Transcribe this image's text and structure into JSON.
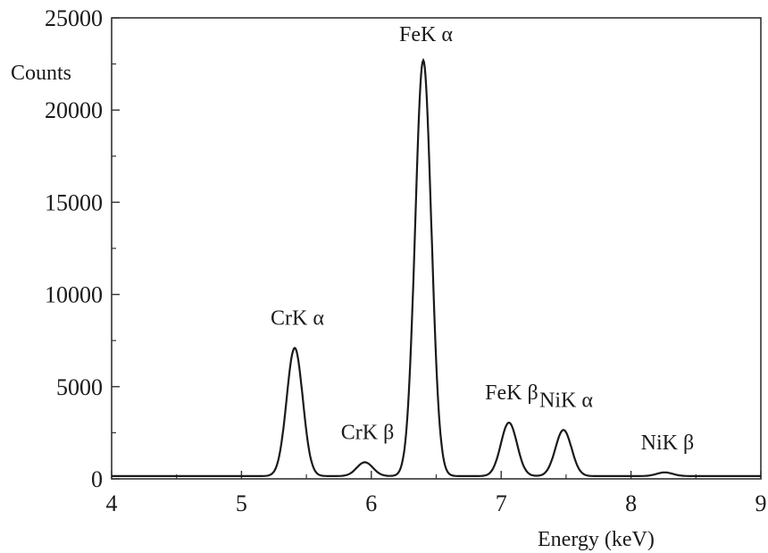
{
  "chart_data": {
    "type": "line",
    "title": "",
    "xlabel": "Energy (keV)",
    "ylabel": "Counts",
    "xlim": [
      4,
      9
    ],
    "ylim": [
      0,
      25000
    ],
    "x_ticks": [
      "4",
      "5",
      "6",
      "7",
      "8",
      "9"
    ],
    "y_ticks": [
      "0",
      "5000",
      "10000",
      "15000",
      "20000",
      "25000"
    ],
    "grid": false,
    "legend": "none",
    "baseline": 150,
    "peaks": [
      {
        "label": "CrK α",
        "energy": 5.41,
        "counts": 7100
      },
      {
        "label": "CrK β",
        "energy": 5.95,
        "counts": 900
      },
      {
        "label": "FeK α",
        "energy": 6.4,
        "counts": 22700
      },
      {
        "label": "FeK β",
        "energy": 7.06,
        "counts": 3050
      },
      {
        "label": "NiK α",
        "energy": 7.48,
        "counts": 2650
      },
      {
        "label": "NiK β",
        "energy": 8.26,
        "counts": 350
      }
    ],
    "colors": {
      "line": "#1a1a1a",
      "axis": "#333333"
    }
  }
}
